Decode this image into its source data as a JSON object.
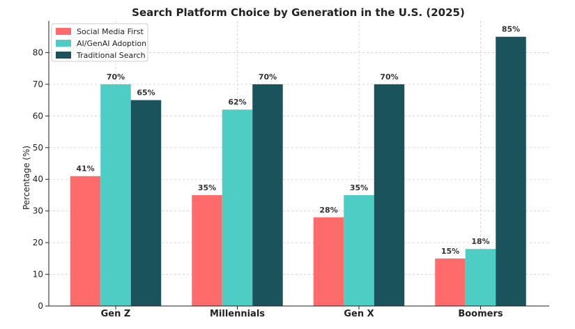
{
  "chart_data": {
    "type": "bar",
    "title": "Search Platform Choice by Generation in the U.S. (2025)",
    "xlabel": "",
    "ylabel": "Percentage (%)",
    "ylim": [
      0,
      90
    ],
    "yticks": [
      0,
      10,
      20,
      30,
      40,
      50,
      60,
      70,
      80
    ],
    "grid": true,
    "legend_placement": "top-left",
    "categories": [
      "Gen Z",
      "Millennials",
      "Gen X",
      "Boomers"
    ],
    "series": [
      {
        "name": "Social Media First",
        "color": "#FF6B6B",
        "values": [
          41,
          35,
          28,
          15
        ],
        "labels": [
          "41%",
          "35%",
          "28%",
          "15%"
        ]
      },
      {
        "name": "AI/GenAI Adoption",
        "color": "#4ECDC4",
        "values": [
          70,
          62,
          35,
          18
        ],
        "labels": [
          "70%",
          "62%",
          "35%",
          "18%"
        ]
      },
      {
        "name": "Traditional Search",
        "color": "#1A535C",
        "values": [
          65,
          70,
          70,
          85
        ],
        "labels": [
          "65%",
          "70%",
          "70%",
          "85%"
        ]
      }
    ]
  }
}
